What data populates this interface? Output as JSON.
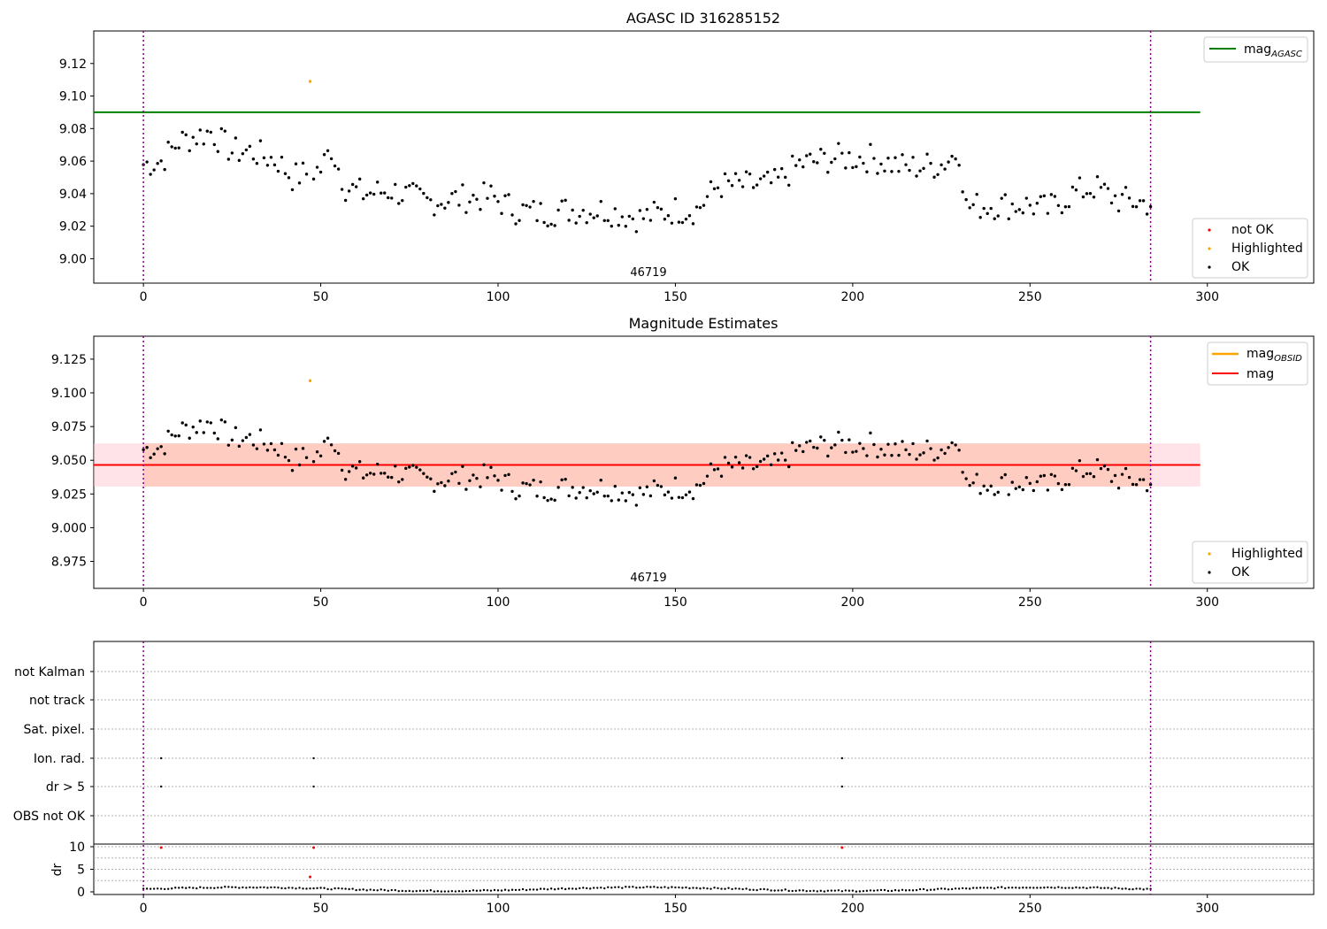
{
  "figure": {
    "top_title": "AGASC ID 316285152",
    "middle_title": "Magnitude Estimates",
    "obs_label": "46719"
  },
  "colors": {
    "ok": "#000000",
    "highlighted": "#ffa500",
    "not_ok": "#ff0000",
    "mag_agasc_line": "#008000",
    "mag_line": "#ff0000",
    "mag_obsid_line": "#ffa500",
    "band_outer": "#ffc0cb",
    "band_inner": "#ffa07a",
    "obs_boundary": "#800080"
  },
  "legends": {
    "top_line": {
      "label": "mag",
      "subscript": "AGASC"
    },
    "top_points": [
      "not OK",
      "Highlighted",
      "OK"
    ],
    "middle_lines": [
      {
        "label": "mag",
        "subscript": "OBSID"
      },
      {
        "label": "mag",
        "subscript": ""
      }
    ],
    "middle_points": [
      "Highlighted",
      "OK"
    ]
  },
  "chart_data": [
    {
      "type": "scatter",
      "title": "AGASC ID 316285152",
      "xlim": [
        -14,
        330
      ],
      "ylim": [
        8.985,
        9.14
      ],
      "x_ticks": [
        0,
        50,
        100,
        150,
        200,
        250,
        300
      ],
      "y_ticks": [
        "9.00",
        "9.02",
        "9.04",
        "9.06",
        "9.08",
        "9.10",
        "9.12"
      ],
      "reference_lines": {
        "mag_AGASC": 9.09
      },
      "observation_boundaries": [
        0,
        284
      ],
      "observation_label": "46719",
      "highlighted_points": [
        [
          47,
          9.109
        ]
      ],
      "ok_points_description": "284 samples, see series in script",
      "series": [
        {
          "name": "OK",
          "key": "ok"
        },
        {
          "name": "Highlighted",
          "key": "highlighted"
        },
        {
          "name": "not OK",
          "key": "not_ok"
        }
      ]
    },
    {
      "type": "scatter",
      "title": "Magnitude Estimates",
      "xlim": [
        -14,
        330
      ],
      "ylim": [
        8.955,
        9.142
      ],
      "x_ticks": [
        0,
        50,
        100,
        150,
        200,
        250,
        300
      ],
      "y_ticks": [
        "8.975",
        "9.000",
        "9.025",
        "9.050",
        "9.075",
        "9.100",
        "9.125"
      ],
      "reference_lines": {
        "mag": 9.0465
      },
      "bands": [
        {
          "lower": 9.0305,
          "upper": 9.0625,
          "color": "band_outer"
        },
        {
          "lower": 9.0305,
          "upper": 9.0625,
          "color": "band_inner",
          "x_range": [
            0,
            284
          ]
        }
      ],
      "observation_boundaries": [
        0,
        284
      ],
      "observation_label": "46719",
      "highlighted_points": [
        [
          47,
          9.109
        ]
      ]
    },
    {
      "type": "scatter",
      "title": "",
      "xlim": [
        -14,
        330
      ],
      "flag_rows": [
        "not Kalman",
        "not track",
        "Sat. pixel.",
        "Ion. rad.",
        "dr > 5",
        "OBS not OK"
      ],
      "flag_points": {
        "Ion. rad.": [
          5,
          48,
          197
        ],
        "dr > 5": [
          5,
          48,
          197
        ]
      },
      "observation_boundaries": [
        0,
        284
      ]
    },
    {
      "type": "scatter",
      "title": "",
      "ylabel": "dr",
      "xlim": [
        -14,
        330
      ],
      "ylim": [
        -1,
        11
      ],
      "y_ticks": [
        "0",
        "5",
        "10"
      ],
      "x_ticks": [
        0,
        50,
        100,
        150,
        200,
        250,
        300
      ],
      "outliers": [
        [
          5,
          9.8
        ],
        [
          48,
          9.8
        ],
        [
          197,
          9.8
        ],
        [
          47,
          3.3
        ]
      ],
      "observation_boundaries": [
        0,
        284
      ]
    }
  ]
}
